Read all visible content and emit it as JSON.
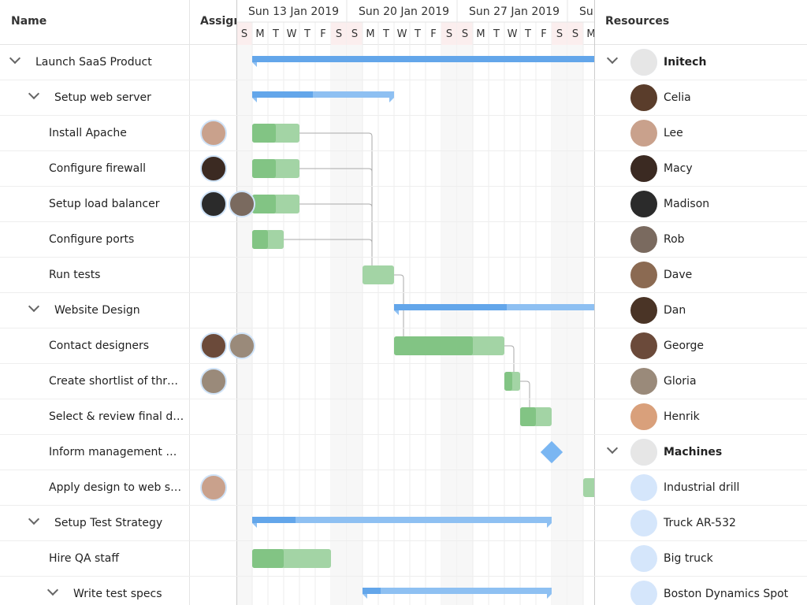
{
  "header": {
    "name": "Name",
    "assign": "Assign",
    "resources": "Resources"
  },
  "timeline": {
    "weeks": [
      "Sun 13 Jan 2019",
      "Sun 20 Jan 2019",
      "Sun 27 Jan 2019",
      "Sun"
    ],
    "days": [
      "S",
      "M",
      "T",
      "W",
      "T",
      "F",
      "S",
      "S",
      "M",
      "T",
      "W",
      "T",
      "F",
      "S",
      "S",
      "M",
      "T",
      "W",
      "T",
      "F",
      "S",
      "S",
      "M"
    ]
  },
  "tasks": [
    "Launch SaaS Product",
    "Setup web server",
    "Install Apache",
    "Configure firewall",
    "Setup load balancer",
    "Configure ports",
    "Run tests",
    "Website Design",
    "Contact designers",
    "Create shortlist of thr…",
    "Select & review final d…",
    "Inform management …",
    "Apply design to web s…",
    "Setup Test Strategy",
    "Hire QA staff",
    "Write test specs"
  ],
  "resources": [
    "Initech",
    "Celia",
    "Lee",
    "Macy",
    "Madison",
    "Rob",
    "Dave",
    "Dan",
    "George",
    "Gloria",
    "Henrik",
    "Machines",
    "Industrial drill",
    "Truck AR-532",
    "Big truck",
    "Boston Dynamics Spot"
  ]
}
